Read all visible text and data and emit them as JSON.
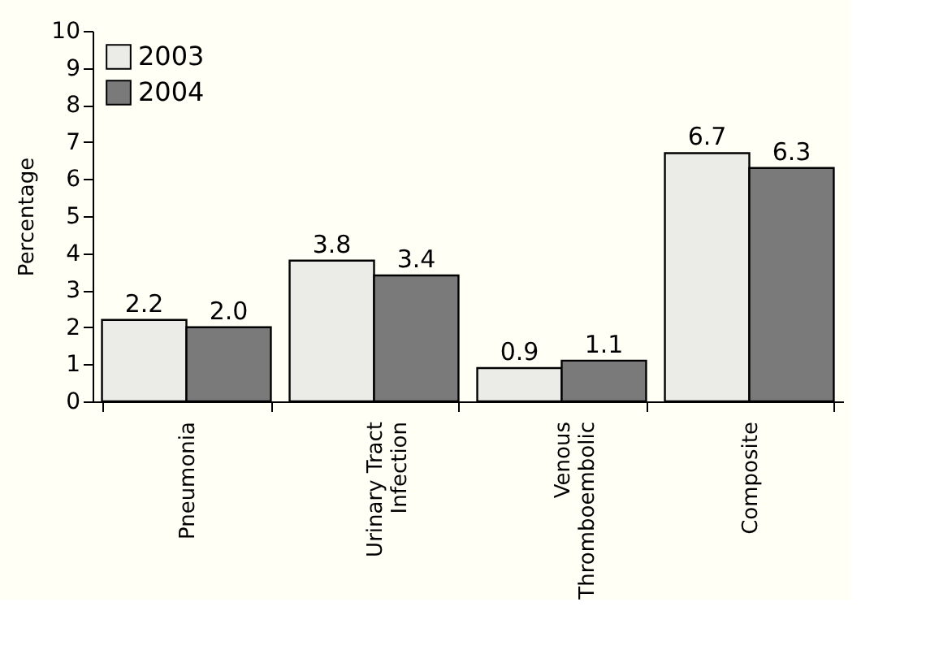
{
  "chart_data": {
    "type": "bar",
    "ylabel": "Percentage",
    "categories": [
      "Pneumonia",
      "Urinary Tract Infection",
      "Venous Thromboembolic",
      "Composite"
    ],
    "series": [
      {
        "name": "2003",
        "color": "#ebebe7",
        "values": [
          2.2,
          3.8,
          0.9,
          6.7
        ],
        "value_labels": [
          "2.2",
          "3.8",
          "0.9",
          "6.7"
        ]
      },
      {
        "name": "2004",
        "color": "#7a7a7a",
        "values": [
          2.0,
          3.4,
          1.1,
          6.3
        ],
        "value_labels": [
          "2.0",
          "3.4",
          "1.1",
          "6.3"
        ]
      }
    ],
    "ylim": [
      0,
      10
    ],
    "yticks": [
      0,
      1,
      2,
      3,
      4,
      5,
      6,
      7,
      8,
      9,
      10
    ],
    "grid": false,
    "legend": "top left"
  }
}
